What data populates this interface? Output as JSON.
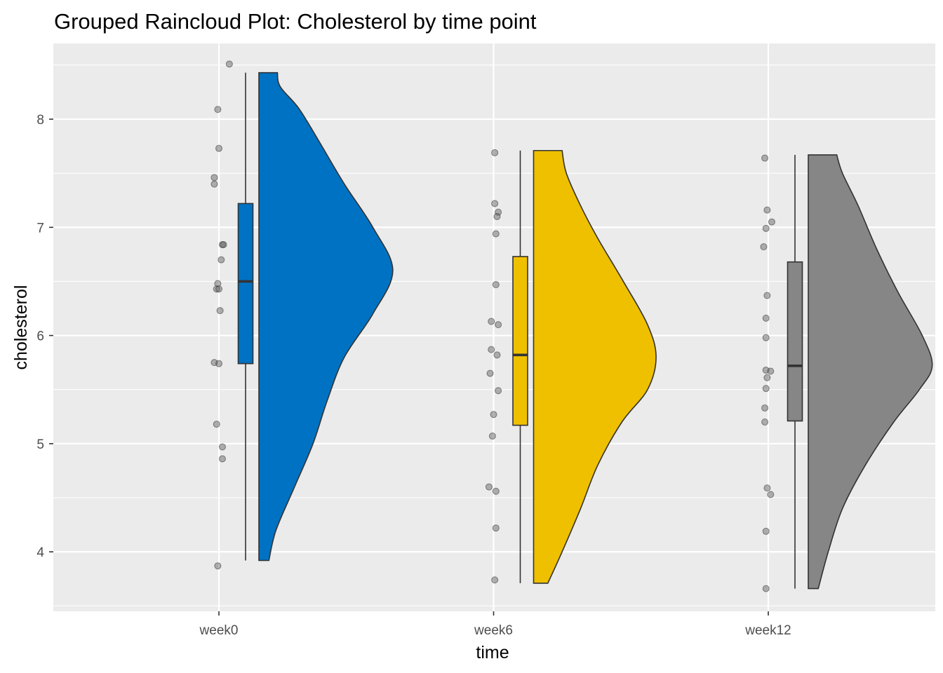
{
  "chart_data": {
    "type": "raincloud",
    "title": "Grouped Raincloud Plot: Cholesterol by time point",
    "xlabel": "time",
    "ylabel": "cholesterol",
    "ylim": [
      3.45,
      8.7
    ],
    "yticks": [
      4,
      5,
      6,
      7,
      8
    ],
    "grid": true,
    "legend": "none",
    "panel_background": "#EBEBEB",
    "grid_color": "#FFFFFF",
    "categories": [
      "week0",
      "week6",
      "week12"
    ],
    "groups": [
      {
        "category": "week0",
        "color": "#0072C3",
        "box": {
          "lower_whisker": 3.92,
          "q1": 5.74,
          "median": 6.5,
          "q3": 7.22,
          "upper_whisker": 8.43
        },
        "density": [
          [
            3.92,
            0.07
          ],
          [
            4.2,
            0.12
          ],
          [
            4.6,
            0.25
          ],
          [
            5.0,
            0.38
          ],
          [
            5.4,
            0.48
          ],
          [
            5.8,
            0.6
          ],
          [
            6.2,
            0.8
          ],
          [
            6.6,
            0.94
          ],
          [
            7.0,
            0.8
          ],
          [
            7.4,
            0.6
          ],
          [
            7.8,
            0.42
          ],
          [
            8.1,
            0.28
          ],
          [
            8.3,
            0.15
          ],
          [
            8.43,
            0.13
          ]
        ],
        "points": [
          [
            0.09,
            8.51
          ],
          [
            -0.01,
            8.09
          ],
          [
            0.0,
            7.73
          ],
          [
            -0.04,
            7.46
          ],
          [
            -0.04,
            7.4
          ],
          [
            0.03,
            6.84
          ],
          [
            0.04,
            6.84
          ],
          [
            0.02,
            6.7
          ],
          [
            -0.01,
            6.48
          ],
          [
            -0.02,
            6.43
          ],
          [
            0.0,
            6.43
          ],
          [
            0.01,
            6.23
          ],
          [
            -0.04,
            5.75
          ],
          [
            0.0,
            5.74
          ],
          [
            -0.02,
            5.18
          ],
          [
            0.03,
            4.97
          ],
          [
            0.03,
            4.86
          ],
          [
            -0.01,
            3.87
          ]
        ]
      },
      {
        "category": "week6",
        "color": "#EFC000",
        "box": {
          "lower_whisker": 3.71,
          "q1": 5.17,
          "median": 5.82,
          "q3": 6.73,
          "upper_whisker": 7.71
        },
        "density": [
          [
            3.71,
            0.1
          ],
          [
            4.0,
            0.2
          ],
          [
            4.4,
            0.33
          ],
          [
            4.8,
            0.45
          ],
          [
            5.2,
            0.62
          ],
          [
            5.5,
            0.8
          ],
          [
            5.8,
            0.86
          ],
          [
            6.1,
            0.8
          ],
          [
            6.5,
            0.63
          ],
          [
            6.9,
            0.45
          ],
          [
            7.2,
            0.33
          ],
          [
            7.5,
            0.23
          ],
          [
            7.71,
            0.2
          ]
        ],
        "points": [
          [
            0.01,
            7.69
          ],
          [
            0.01,
            7.22
          ],
          [
            0.04,
            7.14
          ],
          [
            0.03,
            7.1
          ],
          [
            0.02,
            6.94
          ],
          [
            0.02,
            6.47
          ],
          [
            -0.02,
            6.13
          ],
          [
            0.04,
            6.1
          ],
          [
            -0.02,
            5.87
          ],
          [
            0.03,
            5.82
          ],
          [
            -0.03,
            5.65
          ],
          [
            0.04,
            5.49
          ],
          [
            0.0,
            5.27
          ],
          [
            -0.01,
            5.07
          ],
          [
            -0.04,
            4.6
          ],
          [
            0.02,
            4.56
          ],
          [
            0.02,
            4.22
          ],
          [
            0.01,
            3.74
          ]
        ]
      },
      {
        "category": "week12",
        "color": "#868686",
        "box": {
          "lower_whisker": 3.66,
          "q1": 5.21,
          "median": 5.72,
          "q3": 6.68,
          "upper_whisker": 7.67
        },
        "density": [
          [
            3.66,
            0.07
          ],
          [
            4.0,
            0.14
          ],
          [
            4.4,
            0.24
          ],
          [
            4.8,
            0.4
          ],
          [
            5.2,
            0.6
          ],
          [
            5.5,
            0.78
          ],
          [
            5.72,
            0.87
          ],
          [
            6.0,
            0.8
          ],
          [
            6.4,
            0.63
          ],
          [
            6.8,
            0.48
          ],
          [
            7.2,
            0.35
          ],
          [
            7.5,
            0.24
          ],
          [
            7.67,
            0.2
          ]
        ],
        "points": [
          [
            -0.03,
            7.64
          ],
          [
            -0.01,
            7.16
          ],
          [
            0.03,
            7.05
          ],
          [
            -0.02,
            6.99
          ],
          [
            -0.04,
            6.82
          ],
          [
            -0.01,
            6.37
          ],
          [
            -0.02,
            6.16
          ],
          [
            -0.02,
            5.98
          ],
          [
            -0.02,
            5.68
          ],
          [
            0.02,
            5.67
          ],
          [
            -0.01,
            5.61
          ],
          [
            -0.02,
            5.51
          ],
          [
            -0.03,
            5.33
          ],
          [
            -0.03,
            5.2
          ],
          [
            -0.01,
            4.59
          ],
          [
            0.02,
            4.53
          ],
          [
            -0.02,
            4.19
          ],
          [
            -0.02,
            3.66
          ]
        ]
      }
    ]
  }
}
